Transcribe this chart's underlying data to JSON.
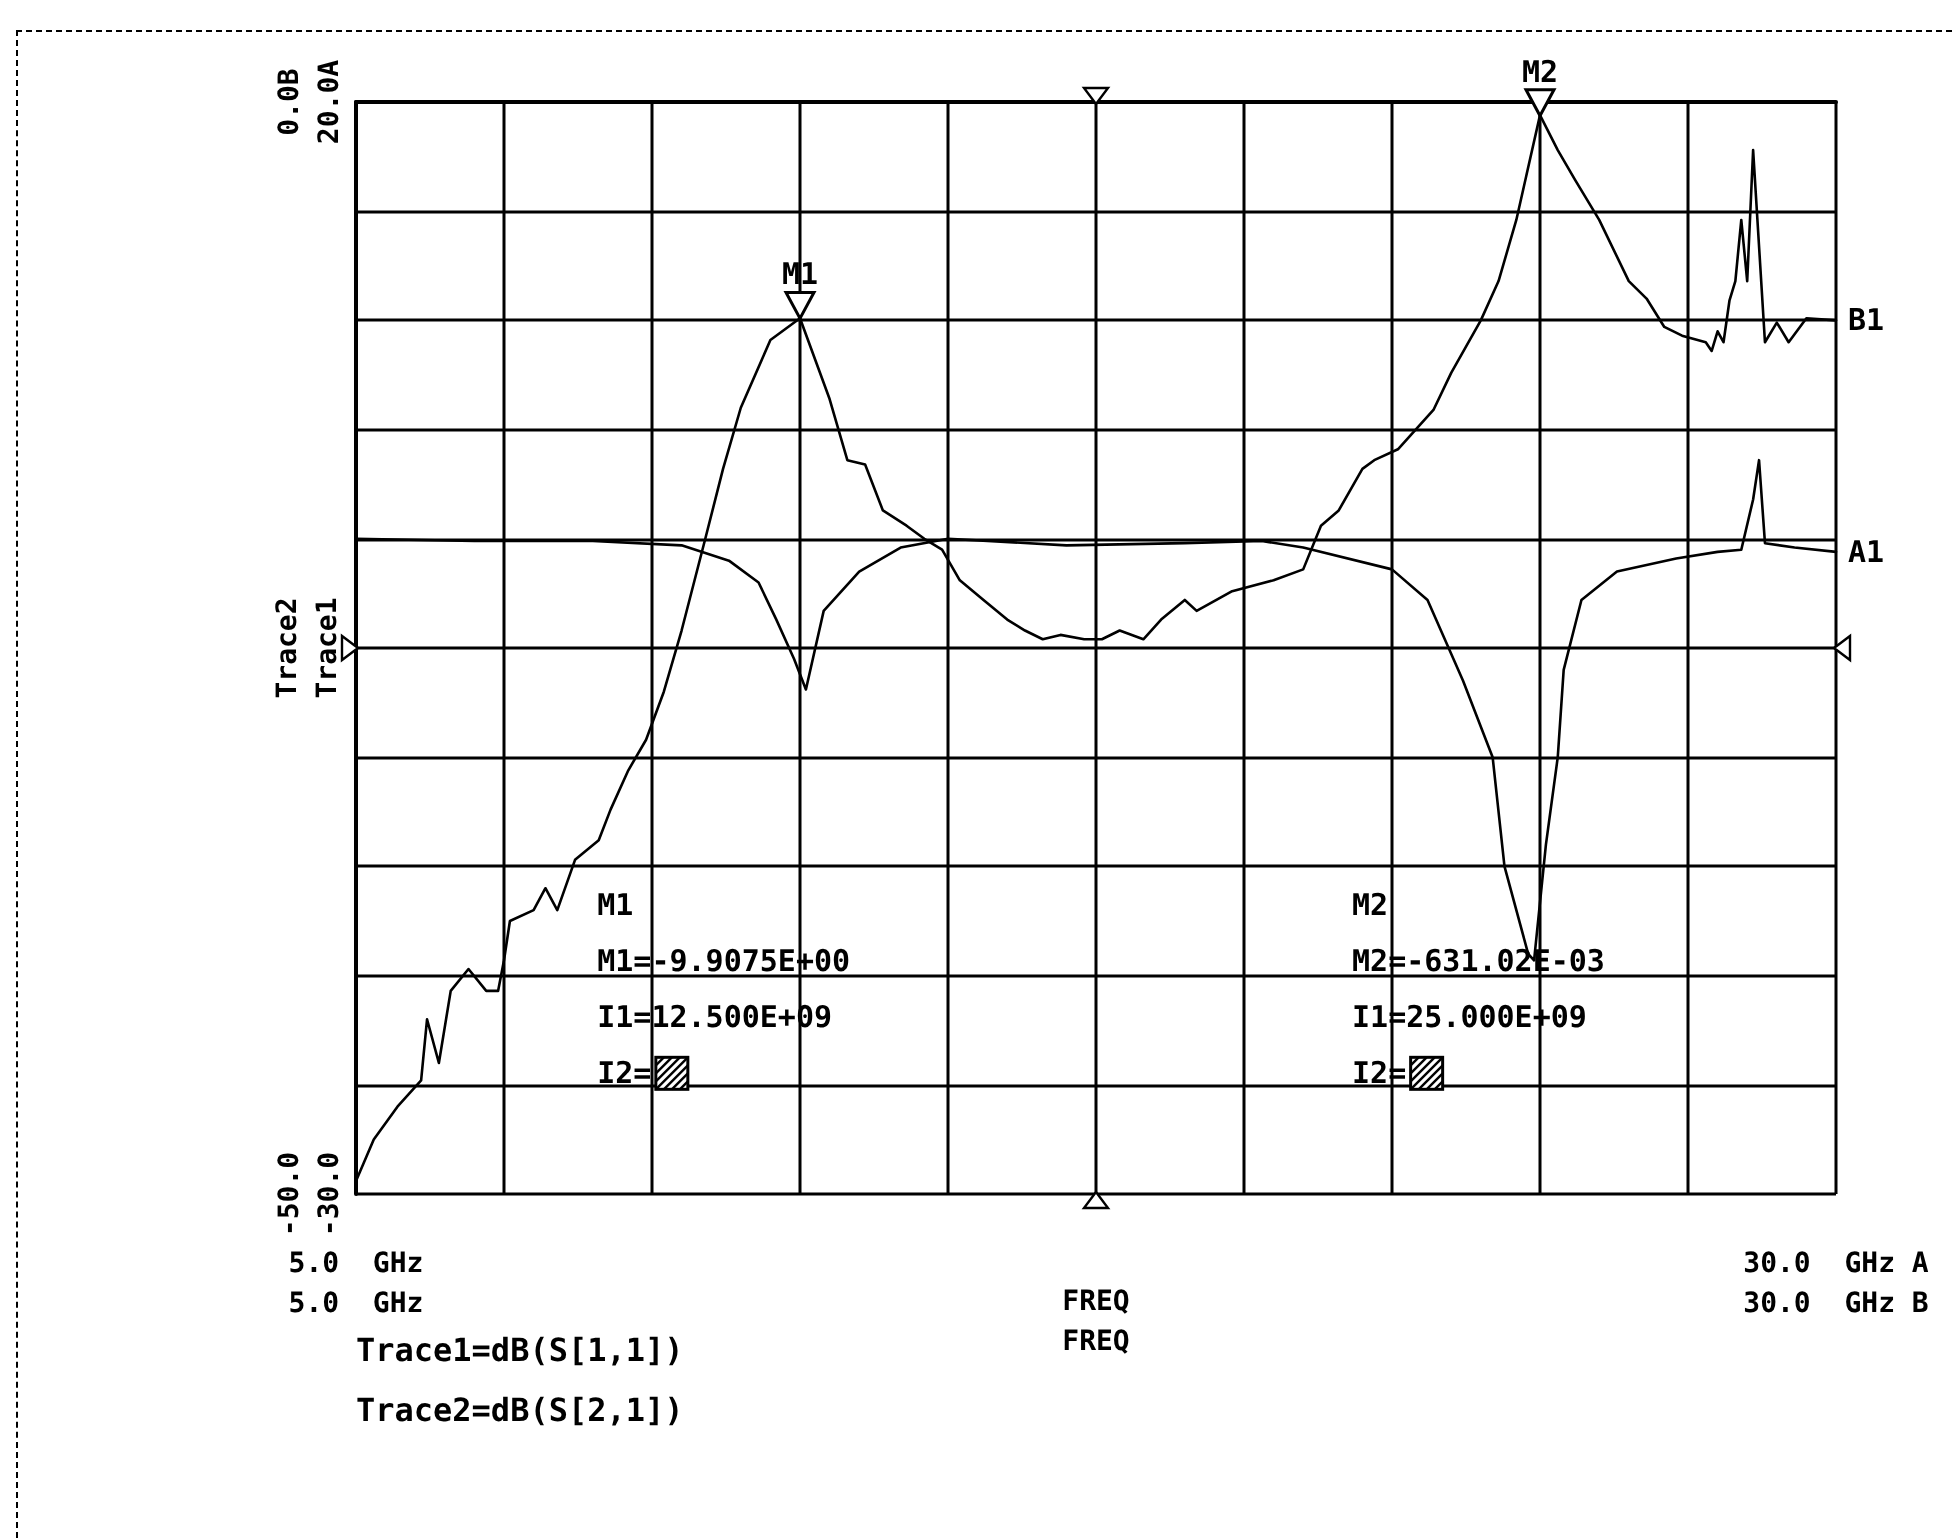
{
  "chart_data": {
    "type": "line",
    "ylabel": "Trace2",
    "y2label": "Trace1",
    "xlabel": "FREQ",
    "x2label": "FREQ",
    "xlim": [
      5,
      30
    ],
    "xticks": [
      {
        "value": 5,
        "label": "5.0  GHz"
      },
      {
        "value": 7.5,
        "label": null
      },
      {
        "value": 10,
        "label": null
      },
      {
        "value": 12.5,
        "label": null
      },
      {
        "value": 15,
        "label": null
      },
      {
        "value": 17.5,
        "label": null
      },
      {
        "value": 20,
        "label": null
      },
      {
        "value": 22.5,
        "label": null
      },
      {
        "value": 25,
        "label": null
      },
      {
        "value": 27.5,
        "label": null
      },
      {
        "value": 30,
        "label": "30.0  GHz A"
      }
    ],
    "x2lim": [
      5,
      30
    ],
    "x2ticks": [
      {
        "value": 5,
        "label": "5.0  GHz"
      },
      {
        "value": 30,
        "label": "30.0  GHz B"
      }
    ],
    "ylim": [
      -50,
      0
    ],
    "yticks": [
      {
        "value": -50,
        "label": "-50.0"
      },
      {
        "value": -45,
        "label": null
      },
      {
        "value": -40,
        "label": null
      },
      {
        "value": -35,
        "label": null
      },
      {
        "value": -30,
        "label": null
      },
      {
        "value": -25,
        "label": null
      },
      {
        "value": -20,
        "label": null
      },
      {
        "value": -15,
        "label": null
      },
      {
        "value": -10,
        "label": null
      },
      {
        "value": -5,
        "label": null
      },
      {
        "value": 0,
        "label": "0.0B"
      }
    ],
    "y2lim": [
      -30,
      20
    ],
    "y2ticks": [
      {
        "value": -30,
        "label": "-30.0"
      },
      {
        "value": 20,
        "label": "20.0A"
      }
    ],
    "grid": true,
    "marker": "none",
    "line_style": "solid",
    "series": [
      {
        "name": "A1",
        "color": "#000000",
        "axis": "y2",
        "x": [
          5,
          7,
          9,
          10.5,
          11.3,
          11.8,
          12.1,
          12.4,
          12.6,
          12.9,
          13.5,
          14.2,
          15,
          17,
          19,
          20.3,
          21,
          22.5,
          23.1,
          23.7,
          24.2,
          24.4,
          24.8,
          24.9,
          25.1,
          25.3,
          25.4,
          25.7,
          26.3,
          27.3,
          28,
          28.4,
          28.6,
          28.7,
          28.8,
          29.3,
          30
        ],
        "values": [
          0,
          -0.1,
          -0.1,
          -0.3,
          -1,
          -2,
          -3.7,
          -5.5,
          -6.9,
          -3.3,
          -1.5,
          -0.4,
          0,
          -0.3,
          -0.2,
          -0.1,
          -0.4,
          -1.4,
          -2.8,
          -6.5,
          -10,
          -15,
          -19,
          -19.3,
          -14,
          -10,
          -6,
          -2.8,
          -1.5,
          -0.9,
          -0.6,
          -0.5,
          1.8,
          3.6,
          -0.2,
          -0.4,
          -0.6
        ]
      },
      {
        "name": "B1",
        "color": "#000000",
        "x": [
          5,
          5.3,
          5.7,
          6.1,
          6.2,
          6.4,
          6.6,
          6.9,
          7.2,
          7.4,
          7.5,
          7.6,
          8,
          8.2,
          8.4,
          8.7,
          9.1,
          9.3,
          9.6,
          9.9,
          10.2,
          10.5,
          10.9,
          11.2,
          11.5,
          12,
          12.5,
          13,
          13.3,
          13.6,
          13.9,
          14.3,
          14.6,
          14.9,
          15.2,
          15.6,
          16,
          16.3,
          16.6,
          16.9,
          17.3,
          17.6,
          17.9,
          18.3,
          18.6,
          19,
          19.2,
          19.8,
          20.5,
          21,
          21.3,
          21.6,
          22,
          22.2,
          22.6,
          23.2,
          23.5,
          24,
          24.3,
          24.6,
          25,
          25.3,
          25.6,
          26,
          26.5,
          26.8,
          27.1,
          27.4,
          27.8,
          27.9,
          28,
          28.1,
          28.2,
          28.3,
          28.4,
          28.5,
          28.6,
          28.8,
          29,
          29.2,
          29.5,
          30
        ],
        "values": [
          -49.4,
          -47.5,
          -46,
          -44.8,
          -42,
          -44,
          -40.7,
          -39.7,
          -40.7,
          -40.7,
          -39.3,
          -37.5,
          -37,
          -36,
          -37,
          -34.7,
          -33.8,
          -32.4,
          -30.6,
          -29.2,
          -27,
          -24.2,
          -20,
          -16.8,
          -14,
          -10.9,
          -9.9,
          -13.6,
          -16.4,
          -16.6,
          -18.7,
          -19.4,
          -20,
          -20.5,
          -21.9,
          -22.8,
          -23.7,
          -24.2,
          -24.6,
          -24.4,
          -24.6,
          -24.6,
          -24.2,
          -24.6,
          -23.7,
          -22.8,
          -23.3,
          -22.4,
          -21.9,
          -21.4,
          -19.4,
          -18.7,
          -16.8,
          -16.4,
          -15.9,
          -14.1,
          -12.4,
          -10,
          -8.2,
          -5.4,
          -0.6,
          -2.2,
          -3.6,
          -5.4,
          -8.2,
          -9,
          -10.3,
          -10.7,
          -11,
          -11.4,
          -10.5,
          -11,
          -9.1,
          -8.2,
          -5.4,
          -8.2,
          -2.2,
          -11,
          -10.1,
          -11,
          -9.9,
          -10
        ]
      }
    ],
    "annotations": [
      {
        "text": "M1",
        "x": 12.5,
        "y": -9.9075
      },
      {
        "text": "M2",
        "x": 25,
        "y": -0.63102
      },
      "M1\nM1=-9.9075E+00\nI1=12.500E+09\nI2=",
      "M2\nM2=-631.02E-03\nI1=25.000E+09\nI2=",
      "Trace1=dB(S[1,1])",
      "Trace2=dB(S[2,1])"
    ]
  }
}
